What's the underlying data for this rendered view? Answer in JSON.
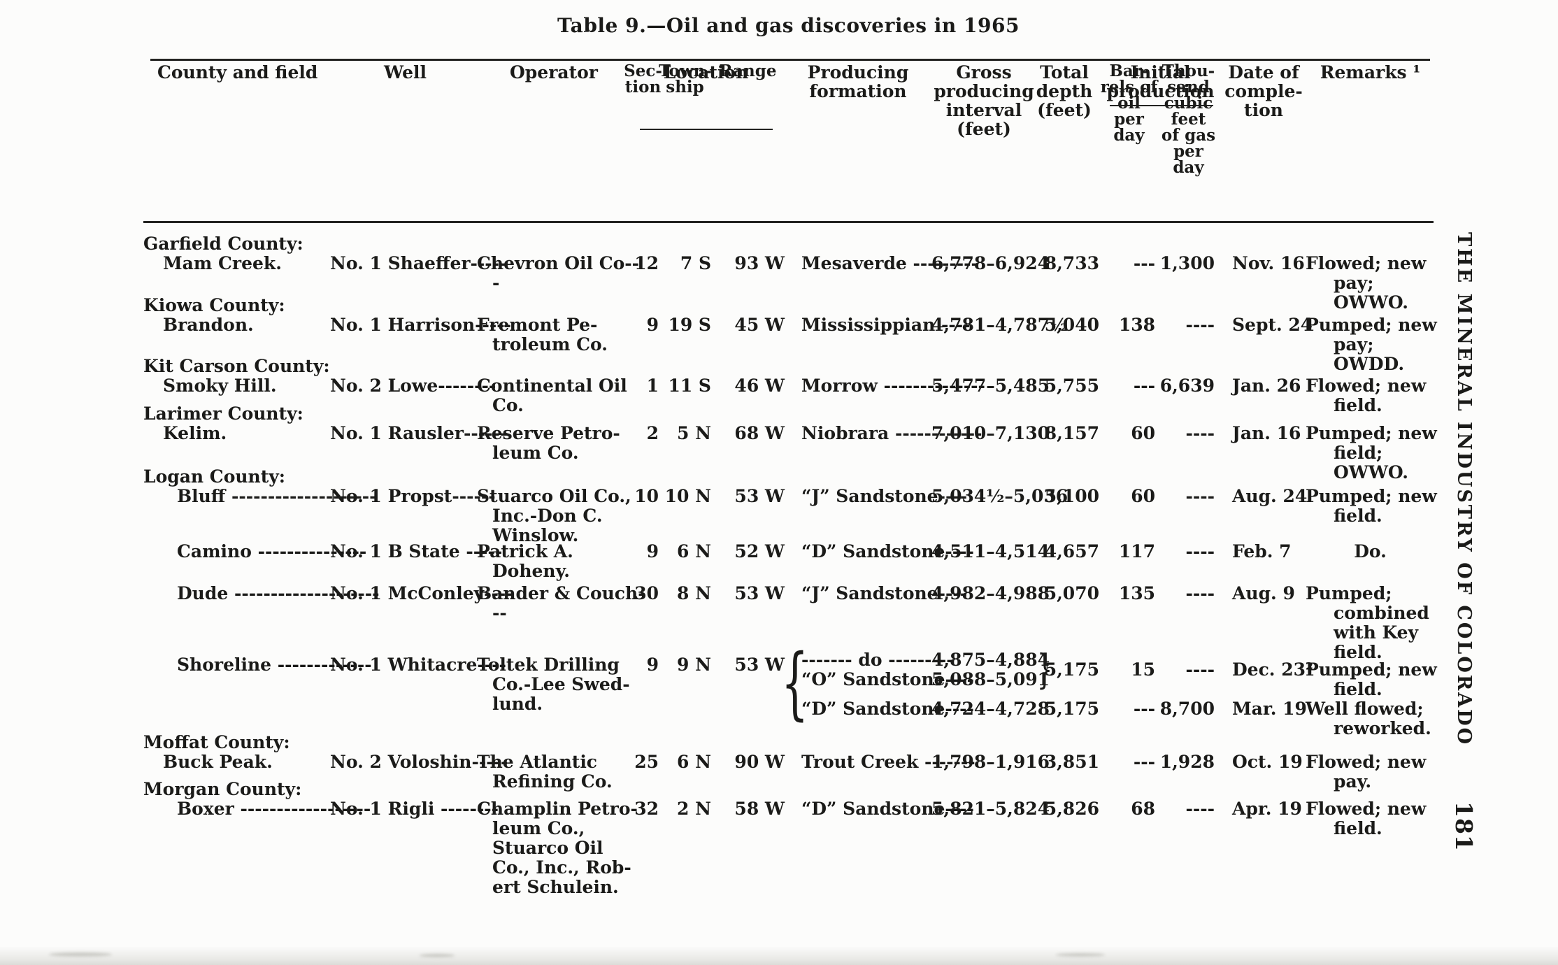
{
  "page": {
    "title": "Table 9.—Oil and gas discoveries in 1965",
    "side_text": "THE MINERAL INDUSTRY OF COLORADO",
    "page_number": "181"
  },
  "table": {
    "headers": {
      "county": "County and field",
      "well": "Well",
      "operator": "Operator",
      "location": "Location",
      "section": "Sec-\ntion",
      "township": "Town-\nship",
      "range": "Range",
      "formation": "Producing\nformation",
      "interval": "Gross\nproducing\ninterval\n(feet)",
      "depth": "Total\ndepth\n(feet)",
      "initial": "Initial\nproduction",
      "oil": "Bar-\nrels of\noil\nper\nday",
      "gas": "Thou-\nsand\ncubic\nfeet\nof gas\nper\nday",
      "date": "Date of\ncomple-\ntion",
      "remarks": "Remarks ¹"
    },
    "rows": [
      {
        "county": "Garfield County:",
        "field": "Mam Creek.",
        "well": "No. 1 Shaeffer-----",
        "operator": "Chevron Oil Co---",
        "sec": "12",
        "twp": "7 S",
        "rng": "93 W",
        "formation": "Mesaverde ---------",
        "interval": "6,778–6,924",
        "depth": "8,733",
        "oil": "---",
        "gas": "1,300",
        "date": "Nov. 16",
        "remarks": "Flowed; new\npay;\nOWWO."
      },
      {
        "county": "Kiowa County:",
        "field": "Brandon.",
        "well": "No. 1 Harrison-----",
        "operator": "Fremont Pe-\ntroleum Co.",
        "sec": "9",
        "twp": "19 S",
        "rng": "45 W",
        "formation": "Mississippian ----",
        "interval": "4,781–4,787½",
        "depth": "5,040",
        "oil": "138",
        "gas": "----",
        "date": "Sept. 24",
        "remarks": "Pumped; new\npay;\nOWDD."
      },
      {
        "county": "Kit Carson County:",
        "field": "Smoky Hill.",
        "well": "No. 2 Lowe--------",
        "operator": "Continental Oil\nCo.",
        "sec": "1",
        "twp": "11 S",
        "rng": "46 W",
        "formation": "Morrow --------------",
        "interval": "5,477–5,485",
        "depth": "5,755",
        "oil": "---",
        "gas": "6,639",
        "date": "Jan. 26",
        "remarks": "Flowed; new\nfield."
      },
      {
        "county": "Larimer County:",
        "field": "Kelim.",
        "well": "No. 1 Rausler------",
        "operator": "Reserve Petro-\nleum Co.",
        "sec": "2",
        "twp": "5 N",
        "rng": "68 W",
        "formation": "Niobrara ------------",
        "interval": "7,010–7,130",
        "depth": "8,157",
        "oil": "60",
        "gas": "----",
        "date": "Jan. 16",
        "remarks": "Pumped; new\nfield;\nOWWO."
      },
      {
        "county": "Logan County:",
        "field": "Bluff --------------------",
        "well": "No. 1 Propst------",
        "operator": "Stuarco Oil Co.,\nInc.-Don C.\nWinslow.",
        "sec": "10",
        "twp": "10 N",
        "rng": "53 W",
        "formation": "“J” Sandstone----",
        "interval": "5,034½–5,036",
        "depth": "5,100",
        "oil": "60",
        "gas": "----",
        "date": "Aug. 24",
        "remarks": "Pumped; new\nfield."
      },
      {
        "field": "Camino ---------------",
        "well": "No. 1 B State -----",
        "operator": "Patrick A.\nDoheny.",
        "sec": "9",
        "twp": "6 N",
        "rng": "52 W",
        "formation": "“D” Sandstone----",
        "interval": "4,511–4,514",
        "depth": "4,657",
        "oil": "117",
        "gas": "----",
        "date": "Feb. 7",
        "remarks": "Do."
      },
      {
        "field": "Dude --------------------",
        "well": "No. 1 McConley----",
        "operator": "Bander & Couch---",
        "sec": "30",
        "twp": "8 N",
        "rng": "53 W",
        "formation": "“J” Sandstone----",
        "interval": "4,982–4,988",
        "depth": "5,070",
        "oil": "135",
        "gas": "----",
        "date": "Aug. 9",
        "remarks": "Pumped;\ncombined\nwith Key\nfield."
      },
      {
        "field": "Shoreline -------------",
        "well": "No. 1 Whitacre----",
        "operator": "Toltek Drilling\nCo.-Lee Swed-\nlund.",
        "sec": "9",
        "twp": "9 N",
        "rng": "53 W",
        "brace_l": "{",
        "brace_r": "}",
        "lines": [
          {
            "f": "------- do ---------",
            "i": "4,875–4,884"
          },
          {
            "f": "“O” Sandstone----",
            "i": "5,088–5,091"
          },
          {
            "f": "“D” Sandstone----",
            "i": "4,724–4,728"
          }
        ],
        "subs": [
          {
            "depth": "5,175",
            "oil": "15",
            "gas": "----",
            "date": "Dec. 23²",
            "remarks": "Pumped; new\nfield."
          },
          {
            "depth": "5,175",
            "oil": "---",
            "gas": "8,700",
            "date": "Mar. 19",
            "remarks": "Well flowed;\nreworked."
          }
        ]
      },
      {
        "county": "Moffat County:",
        "field": "Buck Peak.",
        "well": "No. 2 Voloshin-----",
        "operator": "The Atlantic\nRefining Co.",
        "sec": "25",
        "twp": "6 N",
        "rng": "90 W",
        "formation": "Trout Creek -------",
        "interval": "1,798–1,916",
        "depth": "3,851",
        "oil": "---",
        "gas": "1,928",
        "date": "Oct. 19",
        "remarks": "Flowed; new\npay."
      },
      {
        "county": "Morgan County:",
        "field": "Boxer ------------------",
        "well": "No. 1 Rigli --------",
        "operator": "Champlin Petro-\nleum Co.,\nStuarco Oil\nCo., Inc., Rob-\nert Schulein.",
        "sec": "32",
        "twp": "2 N",
        "rng": "58 W",
        "formation": "“D” Sandstone----",
        "interval": "5,821–5,824",
        "depth": "5,826",
        "oil": "68",
        "gas": "----",
        "date": "Apr. 19",
        "remarks": "Flowed; new\nfield."
      }
    ]
  }
}
